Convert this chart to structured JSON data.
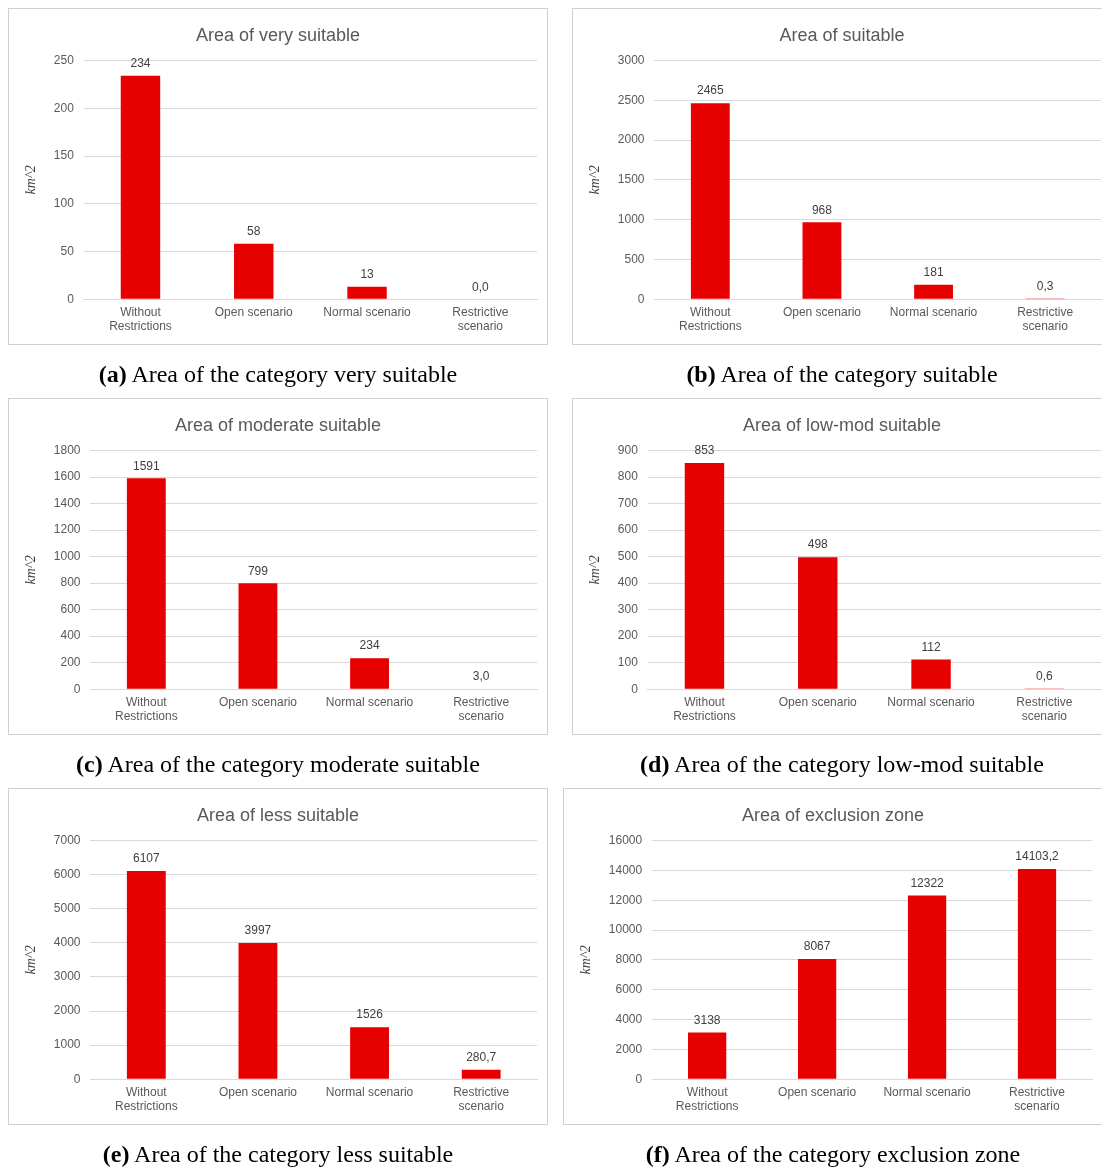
{
  "chart_data": [
    {
      "type": "bar",
      "title": "Area of very suitable",
      "ylabel": "km^2",
      "categories": [
        "Without Restrictions",
        "Open scenario",
        "Normal scenario",
        "Restrictive scenario"
      ],
      "values": [
        234,
        58,
        13,
        0.0
      ],
      "value_labels": [
        "234",
        "58",
        "13",
        "0,0"
      ],
      "color": "#e60000",
      "ylim": [
        0,
        250
      ],
      "yticks": [
        0,
        50,
        100,
        150,
        200,
        250
      ],
      "grid": "y",
      "legend": false,
      "annotations": [
        "(a) Area of the category very suitable"
      ]
    },
    {
      "type": "bar",
      "title": "Area of suitable",
      "ylabel": "km^2",
      "categories": [
        "Without Restrictions",
        "Open scenario",
        "Normal scenario",
        "Restrictive scenario"
      ],
      "values": [
        2465,
        968,
        181,
        0.3
      ],
      "value_labels": [
        "2465",
        "968",
        "181",
        "0,3"
      ],
      "color": "#e60000",
      "ylim": [
        0,
        3000
      ],
      "yticks": [
        0,
        500,
        1000,
        1500,
        2000,
        2500,
        3000
      ],
      "grid": "y",
      "legend": false,
      "annotations": [
        "(b) Area of the category suitable"
      ]
    },
    {
      "type": "bar",
      "title": "Area of moderate suitable",
      "ylabel": "km^2",
      "categories": [
        "Without Restrictions",
        "Open scenario",
        "Normal scenario",
        "Restrictive scenario"
      ],
      "values": [
        1591,
        799,
        234,
        3.0
      ],
      "value_labels": [
        "1591",
        "799",
        "234",
        "3,0"
      ],
      "color": "#e60000",
      "ylim": [
        0,
        1800
      ],
      "yticks": [
        0,
        200,
        400,
        600,
        800,
        1000,
        1200,
        1400,
        1600,
        1800
      ],
      "grid": "y",
      "legend": false,
      "annotations": [
        "(c) Area of the category moderate suitable"
      ]
    },
    {
      "type": "bar",
      "title": "Area of low-mod suitable",
      "ylabel": "km^2",
      "categories": [
        "Without Restrictions",
        "Open scenario",
        "Normal scenario",
        "Restrictive scenario"
      ],
      "values": [
        853,
        498,
        112,
        0.6
      ],
      "value_labels": [
        "853",
        "498",
        "112",
        "0,6"
      ],
      "color": "#e60000",
      "ylim": [
        0,
        900
      ],
      "yticks": [
        0,
        100,
        200,
        300,
        400,
        500,
        600,
        700,
        800,
        900
      ],
      "grid": "y",
      "legend": false,
      "annotations": [
        "(d) Area of the category low-mod suitable"
      ]
    },
    {
      "type": "bar",
      "title": "Area of less suitable",
      "ylabel": "km^2",
      "categories": [
        "Without Restrictions",
        "Open scenario",
        "Normal scenario",
        "Restrictive scenario"
      ],
      "values": [
        6107,
        3997,
        1526,
        280.7
      ],
      "value_labels": [
        "6107",
        "3997",
        "1526",
        "280,7"
      ],
      "color": "#e60000",
      "ylim": [
        0,
        7000
      ],
      "yticks": [
        0,
        1000,
        2000,
        3000,
        4000,
        5000,
        6000,
        7000
      ],
      "grid": "y",
      "legend": false,
      "annotations": [
        "(e) Area of the category less suitable"
      ]
    },
    {
      "type": "bar",
      "title": "Area of exclusion zone",
      "ylabel": "km^2",
      "categories": [
        "Without Restrictions",
        "Open scenario",
        "Normal scenario",
        "Restrictive scenario"
      ],
      "values": [
        3138,
        8067,
        12322,
        14103.2
      ],
      "value_labels": [
        "3138",
        "8067",
        "12322",
        "14103,2"
      ],
      "color": "#e60000",
      "ylim": [
        0,
        16000
      ],
      "yticks": [
        0,
        2000,
        4000,
        6000,
        8000,
        10000,
        12000,
        14000,
        16000
      ],
      "grid": "y",
      "legend": false,
      "annotations": [
        "(f) Area of the category exclusion zone"
      ]
    }
  ]
}
